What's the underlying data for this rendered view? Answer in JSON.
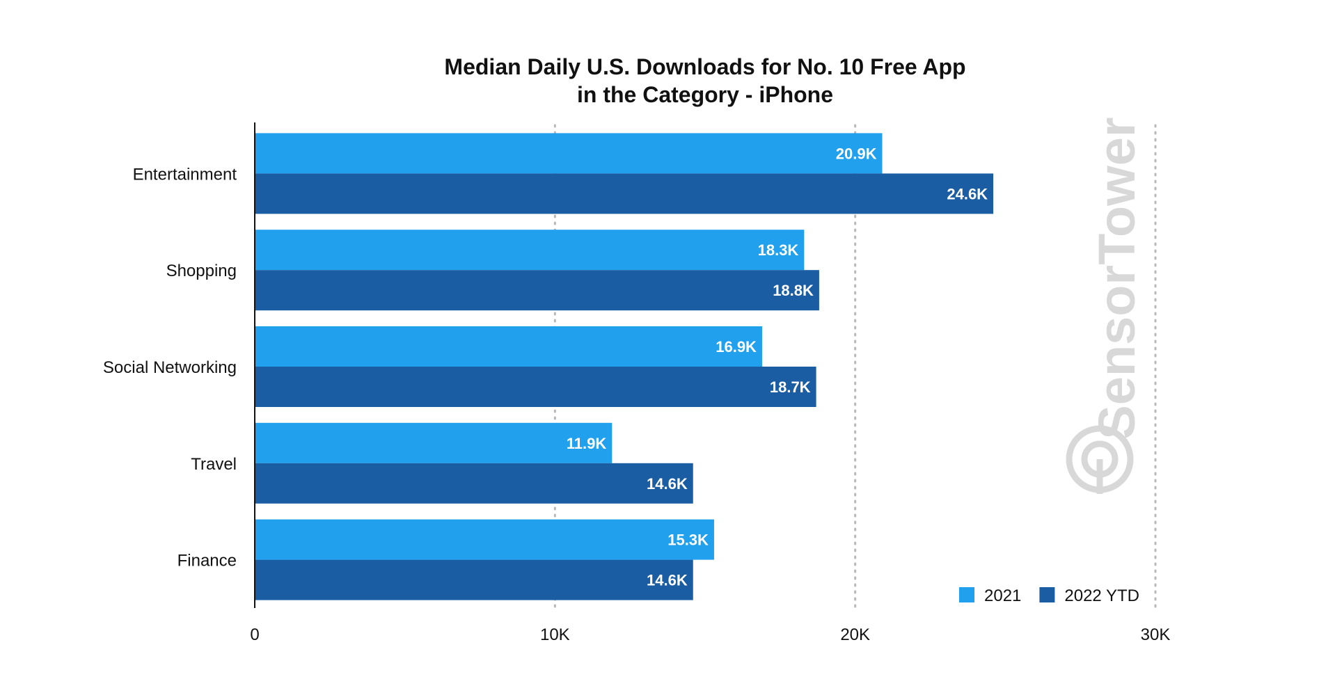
{
  "chart_data": {
    "type": "bar",
    "orientation": "horizontal",
    "title_lines": [
      "Median Daily U.S. Downloads for No. 10 Free App",
      "in the Category - iPhone"
    ],
    "categories": [
      "Entertainment",
      "Shopping",
      "Social Networking",
      "Travel",
      "Finance"
    ],
    "series": [
      {
        "name": "2021",
        "color": "#21A0EE",
        "values": [
          20.9,
          18.3,
          16.9,
          11.9,
          15.3
        ],
        "labels": [
          "20.9K",
          "18.3K",
          "16.9K",
          "11.9K",
          "15.3K"
        ]
      },
      {
        "name": "2022 YTD",
        "color": "#1A5DA3",
        "values": [
          24.6,
          18.8,
          18.7,
          14.6,
          14.6
        ],
        "labels": [
          "24.6K",
          "18.8K",
          "18.7K",
          "14.6K",
          "14.6K"
        ]
      }
    ],
    "xlim": [
      0,
      30
    ],
    "xticks": [
      0,
      10,
      20,
      30
    ],
    "xtick_labels": [
      "0",
      "10K",
      "20K",
      "30K"
    ],
    "grid": "vertical dotted",
    "legend_position": "bottom-right",
    "xlabel": "",
    "ylabel": ""
  },
  "watermark": {
    "text": "SensorTower",
    "logo": "sensor-tower-logo-icon"
  }
}
